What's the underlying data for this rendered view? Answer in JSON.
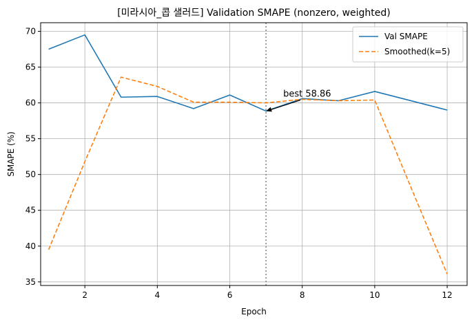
{
  "chart_data": {
    "type": "line",
    "title": "[미라시아_콥 샐러드] Validation SMAPE (nonzero, weighted)",
    "xlabel": "Epoch",
    "ylabel": "SMAPE (%)",
    "xlim": [
      0.78,
      12.55
    ],
    "ylim": [
      34.5,
      71.2
    ],
    "x_ticks": [
      2,
      4,
      6,
      8,
      10,
      12
    ],
    "y_ticks": [
      35,
      40,
      45,
      50,
      55,
      60,
      65,
      70
    ],
    "grid": true,
    "legend_position": "top-right",
    "x": [
      1,
      2,
      3,
      4,
      5,
      6,
      7,
      8,
      9,
      10,
      11,
      12
    ],
    "series": [
      {
        "name": "Val SMAPE",
        "values": [
          67.5,
          69.5,
          60.8,
          60.9,
          59.2,
          61.1,
          58.86,
          60.6,
          60.3,
          61.6,
          60.3,
          59.0
        ],
        "color": "#1f77b4",
        "style": "solid"
      },
      {
        "name": "Smoothed(k=5)",
        "values": [
          39.5,
          51.8,
          63.6,
          62.3,
          60.1,
          60.1,
          60.0,
          60.5,
          60.3,
          60.4,
          48.2,
          36.1
        ],
        "color": "#ff7f0e",
        "style": "dashed"
      }
    ],
    "best_epoch": 7,
    "annotation": {
      "text": "best 58.86",
      "x": 7,
      "y": 58.86
    },
    "colors": {
      "grid": "#b0b0b0",
      "axis": "#000000",
      "vline": "#808080"
    }
  }
}
